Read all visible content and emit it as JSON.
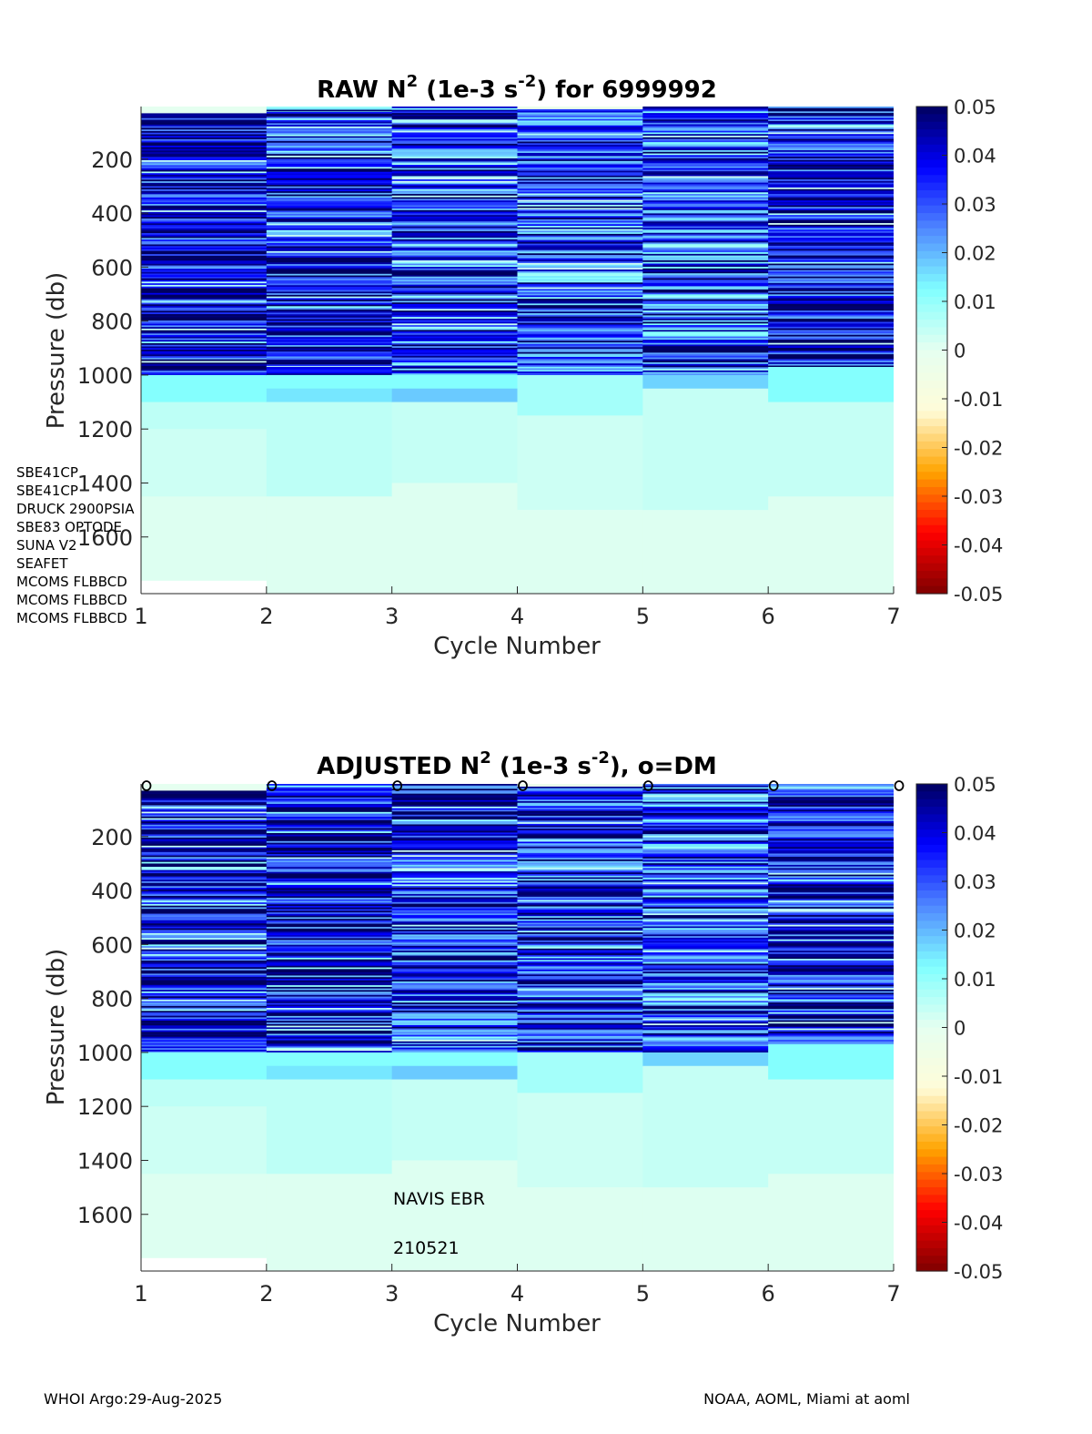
{
  "colors": {
    "colormap_stops": [
      "#7f0000",
      "#ff0000",
      "#ffa500",
      "#fffcd8",
      "#e5fff0",
      "#80ffff",
      "#4f86ff",
      "#0000ff",
      "#00005f"
    ],
    "nan": "#ffffff",
    "axis": "#262626"
  },
  "sensors": [
    "SBE41CP",
    "SBE41CP",
    "DRUCK 2900PSIA",
    "SBE83 OPTODE",
    "SUNA V2",
    "SEAFET",
    "MCOMS FLBBCD",
    "MCOMS FLBBCD",
    "MCOMS FLBBCD"
  ],
  "platform_note": {
    "model": "NAVIS EBR",
    "id": "210521"
  },
  "footer": {
    "left": "WHOI Argo:29-Aug-2025",
    "right": "NOAA, AOML, Miami at aoml"
  },
  "chart_data": [
    {
      "type": "heatmap",
      "panel": "raw",
      "title": {
        "base": "RAW N",
        "sup1": "2",
        "mid": " (1e-3 s",
        "sup2": "-2",
        "tail": ") for 6999992"
      },
      "xlabel": "Cycle Number",
      "ylabel": "Pressure (db)",
      "x_ticks": [
        "1",
        "2",
        "3",
        "4",
        "5",
        "6",
        "7"
      ],
      "y_ticks": [
        "200",
        "400",
        "600",
        "800",
        "1000",
        "1200",
        "1400",
        "1600"
      ],
      "y_tick_values": [
        200,
        400,
        600,
        800,
        1000,
        1200,
        1400,
        1600
      ],
      "xlim": [
        1,
        7
      ],
      "ylim": [
        5,
        1810
      ],
      "clim": [
        -0.05,
        0.05
      ],
      "colorbar_ticks": [
        "0.05",
        "0.04",
        "0.03",
        "0.02",
        "0.01",
        "0",
        "-0.01",
        "-0.02",
        "-0.03",
        "-0.04",
        "-0.05"
      ],
      "colorbar_tick_values": [
        0.05,
        0.04,
        0.03,
        0.02,
        0.01,
        0,
        -0.01,
        -0.02,
        -0.03,
        -0.04,
        -0.05
      ],
      "dm_markers": [],
      "columns": [
        {
          "cycle": 1,
          "max_p": 1760,
          "segments": [
            [
              5,
              30,
              0.0
            ],
            [
              30,
              1000,
              0.04
            ],
            [
              1000,
              1100,
              0.012
            ],
            [
              1100,
              1200,
              0.005
            ],
            [
              1200,
              1450,
              0.003
            ],
            [
              1450,
              1760,
              0.001
            ]
          ]
        },
        {
          "cycle": 2,
          "max_p": 1810,
          "segments": [
            [
              5,
              25,
              0.03
            ],
            [
              25,
              970,
              0.038
            ],
            [
              970,
              1000,
              0.028
            ],
            [
              1000,
              1050,
              0.012
            ],
            [
              1050,
              1100,
              0.015
            ],
            [
              1100,
              1450,
              0.005
            ],
            [
              1450,
              1810,
              0.001
            ]
          ]
        },
        {
          "cycle": 3,
          "max_p": 1810,
          "segments": [
            [
              5,
              970,
              0.036
            ],
            [
              970,
              1000,
              0.03
            ],
            [
              1000,
              1050,
              0.012
            ],
            [
              1050,
              1100,
              0.018
            ],
            [
              1100,
              1400,
              0.004
            ],
            [
              1400,
              1810,
              0.001
            ]
          ]
        },
        {
          "cycle": 4,
          "max_p": 1810,
          "segments": [
            [
              5,
              15,
              -0.003
            ],
            [
              15,
              1000,
              0.034
            ],
            [
              1000,
              1150,
              0.008
            ],
            [
              1150,
              1500,
              0.003
            ],
            [
              1500,
              1810,
              0.001
            ]
          ]
        },
        {
          "cycle": 5,
          "max_p": 1810,
          "segments": [
            [
              5,
              1000,
              0.032
            ],
            [
              1000,
              1050,
              0.017
            ],
            [
              1050,
              1500,
              0.004
            ],
            [
              1500,
              1810,
              0.001
            ]
          ]
        },
        {
          "cycle": 6,
          "max_p": 1810,
          "segments": [
            [
              5,
              970,
              0.04
            ],
            [
              970,
              1100,
              0.012
            ],
            [
              1100,
              1450,
              0.004
            ],
            [
              1450,
              1810,
              0.001
            ]
          ]
        }
      ]
    },
    {
      "type": "heatmap",
      "panel": "adjusted",
      "title": {
        "base": "ADJUSTED N",
        "sup1": "2",
        "mid": " (1e-3 s",
        "sup2": "-2",
        "tail": "), o=DM"
      },
      "xlabel": "Cycle Number",
      "ylabel": "Pressure (db)",
      "x_ticks": [
        "1",
        "2",
        "3",
        "4",
        "5",
        "6",
        "7"
      ],
      "y_ticks": [
        "200",
        "400",
        "600",
        "800",
        "1000",
        "1200",
        "1400",
        "1600"
      ],
      "y_tick_values": [
        200,
        400,
        600,
        800,
        1000,
        1200,
        1400,
        1600
      ],
      "xlim": [
        1,
        7
      ],
      "ylim": [
        5,
        1810
      ],
      "clim": [
        -0.05,
        0.05
      ],
      "colorbar_ticks": [
        "0.05",
        "0.04",
        "0.03",
        "0.02",
        "0.01",
        "0",
        "-0.01",
        "-0.02",
        "-0.03",
        "-0.04",
        "-0.05"
      ],
      "colorbar_tick_values": [
        0.05,
        0.04,
        0.03,
        0.02,
        0.01,
        0,
        -0.01,
        -0.02,
        -0.03,
        -0.04,
        -0.05
      ],
      "dm_markers": [
        1,
        2,
        3,
        4,
        5,
        6,
        7
      ],
      "columns": [
        {
          "cycle": 1,
          "max_p": 1760,
          "segments": [
            [
              5,
              30,
              0.0
            ],
            [
              30,
              1000,
              0.04
            ],
            [
              1000,
              1100,
              0.012
            ],
            [
              1100,
              1200,
              0.005
            ],
            [
              1200,
              1450,
              0.003
            ],
            [
              1450,
              1760,
              0.001
            ]
          ]
        },
        {
          "cycle": 2,
          "max_p": 1810,
          "segments": [
            [
              5,
              25,
              0.03
            ],
            [
              25,
              970,
              0.038
            ],
            [
              970,
              1000,
              0.028
            ],
            [
              1000,
              1050,
              0.012
            ],
            [
              1050,
              1100,
              0.015
            ],
            [
              1100,
              1450,
              0.005
            ],
            [
              1450,
              1810,
              0.001
            ]
          ]
        },
        {
          "cycle": 3,
          "max_p": 1810,
          "segments": [
            [
              5,
              970,
              0.036
            ],
            [
              970,
              1000,
              0.03
            ],
            [
              1000,
              1050,
              0.012
            ],
            [
              1050,
              1100,
              0.018
            ],
            [
              1100,
              1400,
              0.004
            ],
            [
              1400,
              1810,
              0.001
            ]
          ]
        },
        {
          "cycle": 4,
          "max_p": 1810,
          "segments": [
            [
              5,
              15,
              -0.003
            ],
            [
              15,
              1000,
              0.034
            ],
            [
              1000,
              1150,
              0.008
            ],
            [
              1150,
              1500,
              0.003
            ],
            [
              1500,
              1810,
              0.001
            ]
          ]
        },
        {
          "cycle": 5,
          "max_p": 1810,
          "segments": [
            [
              5,
              1000,
              0.032
            ],
            [
              1000,
              1050,
              0.017
            ],
            [
              1050,
              1500,
              0.004
            ],
            [
              1500,
              1810,
              0.001
            ]
          ]
        },
        {
          "cycle": 6,
          "max_p": 1810,
          "segments": [
            [
              5,
              970,
              0.04
            ],
            [
              970,
              1100,
              0.012
            ],
            [
              1100,
              1450,
              0.004
            ],
            [
              1450,
              1810,
              0.001
            ]
          ]
        }
      ]
    }
  ]
}
